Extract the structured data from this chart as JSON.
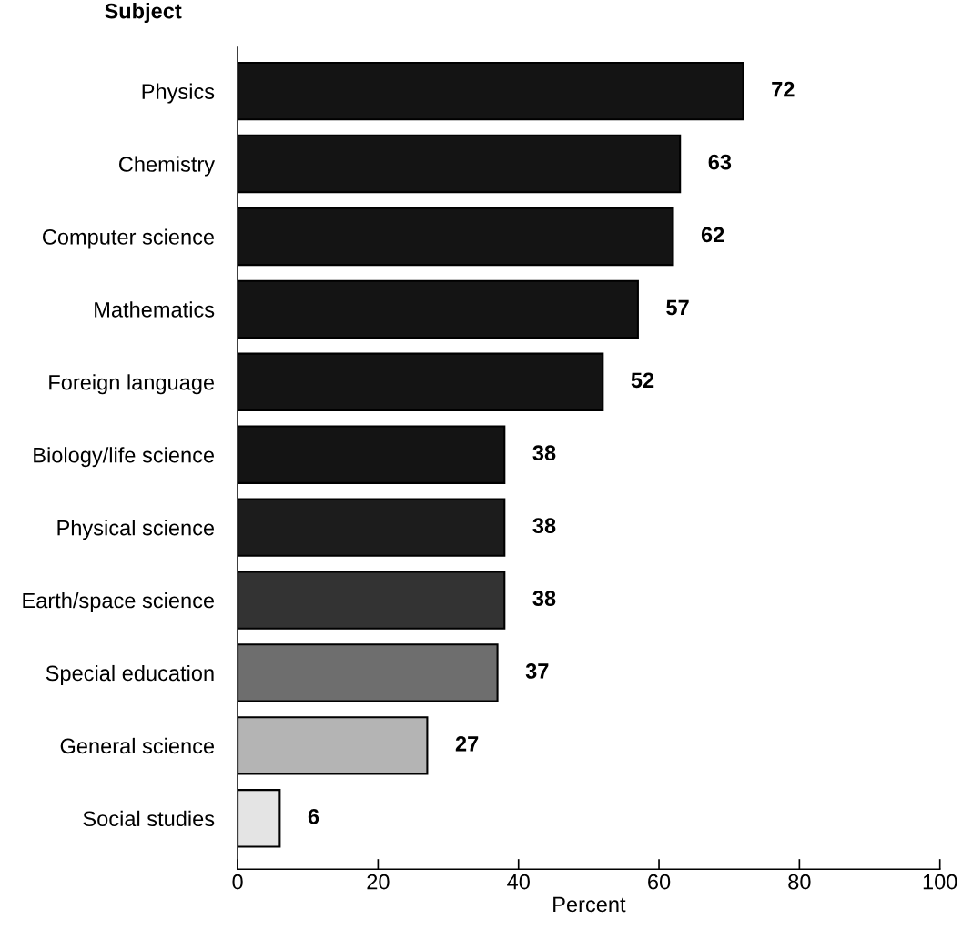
{
  "chart_data": {
    "type": "bar",
    "orientation": "horizontal",
    "ylabel": "Subject",
    "xlabel": "Percent",
    "categories": [
      "Physics",
      "Chemistry",
      "Computer science",
      "Mathematics",
      "Foreign language",
      "Biology/life science",
      "Physical science",
      "Earth/space science",
      "Special education",
      "General science",
      "Social studies"
    ],
    "values": [
      72,
      63,
      62,
      57,
      52,
      38,
      38,
      38,
      37,
      27,
      6
    ],
    "colors": [
      "#141414",
      "#141414",
      "#141414",
      "#141414",
      "#141414",
      "#141414",
      "#1c1c1c",
      "#333333",
      "#6e6e6e",
      "#b4b4b4",
      "#e4e4e4"
    ],
    "xlim": [
      0,
      100
    ],
    "xticks": [
      0,
      20,
      40,
      60,
      80,
      100
    ],
    "data_labels": true,
    "grid": false,
    "legend": false
  }
}
